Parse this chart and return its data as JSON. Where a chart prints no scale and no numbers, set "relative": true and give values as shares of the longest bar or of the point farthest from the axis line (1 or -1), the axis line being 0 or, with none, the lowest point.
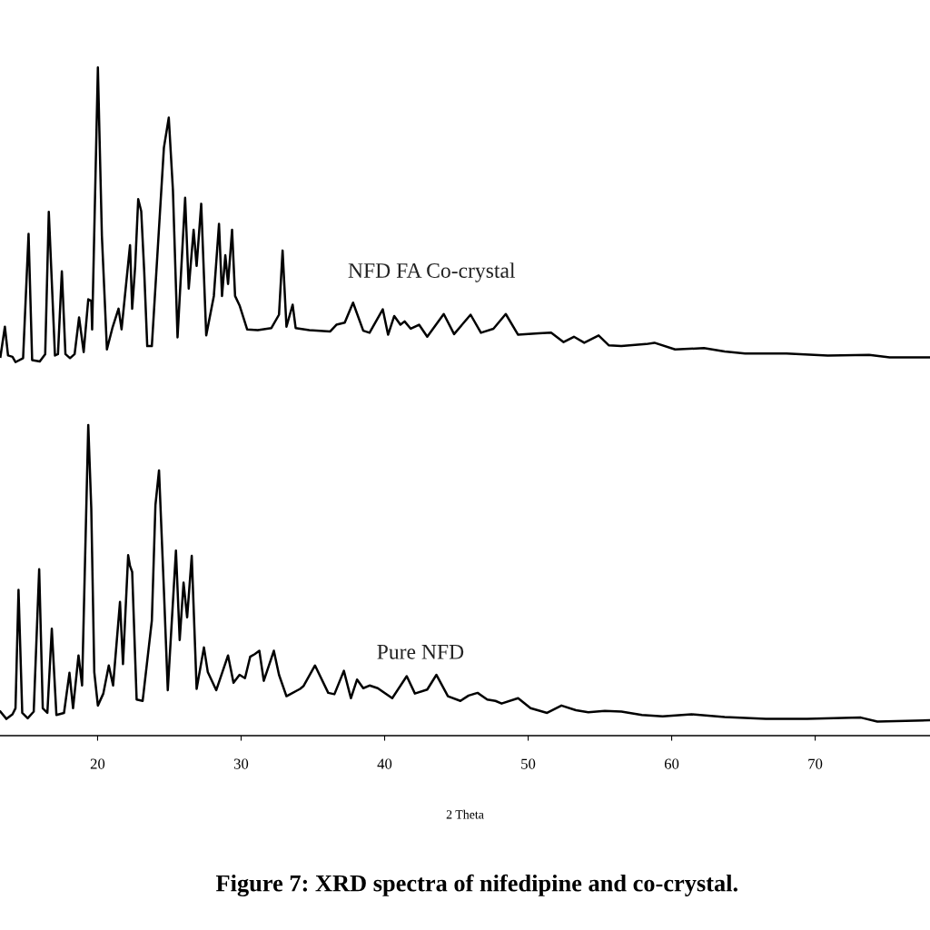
{
  "chart_data": {
    "type": "line",
    "title": "Figure 7: XRD spectra of nifedipine and co-crystal.",
    "xlabel": "2 Theta",
    "relative": true,
    "xlim": [
      13.2,
      78.0
    ],
    "xticks": [
      20,
      30,
      40,
      50,
      60,
      70
    ],
    "series": [
      {
        "name": "NFD FA Co-crystal",
        "color": "#000000",
        "x": [
          13.23,
          13.54,
          13.76,
          14.07,
          14.28,
          14.81,
          15.19,
          15.44,
          15.97,
          16.35,
          16.6,
          17.03,
          17.24,
          17.51,
          17.76,
          18.08,
          18.4,
          18.71,
          19.03,
          19.35,
          19.56,
          19.62,
          20.02,
          20.3,
          20.65,
          21.03,
          21.46,
          21.67,
          22.26,
          22.41,
          22.62,
          22.83,
          23.04,
          23.25,
          23.46,
          23.78,
          24.62,
          24.96,
          25.25,
          25.57,
          26.1,
          26.35,
          26.69,
          26.9,
          27.22,
          27.57,
          28.1,
          28.46,
          28.67,
          28.9,
          29.09,
          29.37,
          29.58,
          29.89,
          30.42,
          31.16,
          32.11,
          32.64,
          32.89,
          33.16,
          33.59,
          33.8,
          34.75,
          36.21,
          36.64,
          37.22,
          37.8,
          38.51,
          38.95,
          39.87,
          40.24,
          40.67,
          41.1,
          41.39,
          41.82,
          42.4,
          42.97,
          44.12,
          44.84,
          45.99,
          46.71,
          47.58,
          48.44,
          49.3,
          50.74,
          51.6,
          52.47,
          53.19,
          53.91,
          54.91,
          55.63,
          56.49,
          58.22,
          58.8,
          60.24,
          62.25,
          63.69,
          65.12,
          68.0,
          70.88,
          73.76,
          75.19,
          78.0
        ],
        "values": [
          0.567,
          0.612,
          0.569,
          0.567,
          0.559,
          0.565,
          0.751,
          0.562,
          0.56,
          0.571,
          0.784,
          0.569,
          0.571,
          0.695,
          0.571,
          0.565,
          0.571,
          0.626,
          0.574,
          0.653,
          0.651,
          0.608,
          1.0,
          0.748,
          0.578,
          0.61,
          0.639,
          0.608,
          0.734,
          0.639,
          0.703,
          0.803,
          0.785,
          0.694,
          0.583,
          0.583,
          0.88,
          0.925,
          0.816,
          0.596,
          0.805,
          0.669,
          0.757,
          0.703,
          0.796,
          0.599,
          0.658,
          0.766,
          0.658,
          0.719,
          0.676,
          0.757,
          0.658,
          0.644,
          0.608,
          0.607,
          0.61,
          0.63,
          0.726,
          0.612,
          0.645,
          0.61,
          0.607,
          0.605,
          0.615,
          0.618,
          0.648,
          0.606,
          0.603,
          0.638,
          0.6,
          0.628,
          0.615,
          0.62,
          0.609,
          0.615,
          0.597,
          0.631,
          0.601,
          0.63,
          0.603,
          0.609,
          0.631,
          0.6,
          0.602,
          0.603,
          0.589,
          0.597,
          0.588,
          0.599,
          0.584,
          0.583,
          0.586,
          0.588,
          0.578,
          0.58,
          0.575,
          0.572,
          0.572,
          0.569,
          0.57,
          0.566,
          0.566
        ]
      },
      {
        "name": "Pure NFD",
        "color": "#000000",
        "x": [
          13.23,
          13.65,
          14.07,
          14.28,
          14.49,
          14.75,
          15.13,
          15.55,
          15.93,
          16.18,
          16.5,
          16.81,
          17.13,
          17.66,
          18.04,
          18.29,
          18.67,
          18.92,
          19.35,
          19.56,
          19.77,
          20.02,
          20.4,
          20.78,
          21.08,
          21.56,
          21.77,
          22.13,
          22.26,
          22.41,
          22.72,
          23.14,
          23.78,
          24.03,
          24.28,
          24.62,
          24.89,
          25.46,
          25.72,
          25.99,
          26.24,
          26.56,
          26.9,
          27.41,
          27.68,
          28.27,
          29.09,
          29.47,
          29.89,
          30.27,
          30.63,
          30.95,
          31.27,
          31.58,
          32.28,
          32.64,
          33.16,
          34.11,
          34.34,
          35.15,
          36.07,
          36.5,
          37.16,
          37.65,
          38.08,
          38.51,
          38.95,
          39.52,
          40.53,
          41.54,
          42.11,
          42.97,
          43.61,
          44.41,
          45.28,
          45.85,
          46.48,
          47.15,
          47.72,
          48.15,
          49.3,
          50.17,
          51.32,
          52.32,
          53.33,
          54.19,
          55.34,
          56.5,
          57.93,
          59.37,
          61.39,
          63.69,
          66.56,
          69.44,
          73.18,
          74.33,
          78.0
        ],
        "values": [
          0.036,
          0.025,
          0.032,
          0.041,
          0.218,
          0.034,
          0.026,
          0.036,
          0.249,
          0.041,
          0.034,
          0.16,
          0.031,
          0.034,
          0.094,
          0.041,
          0.12,
          0.075,
          0.465,
          0.34,
          0.095,
          0.045,
          0.063,
          0.105,
          0.075,
          0.2,
          0.107,
          0.27,
          0.254,
          0.245,
          0.054,
          0.052,
          0.172,
          0.345,
          0.397,
          0.218,
          0.068,
          0.277,
          0.143,
          0.229,
          0.177,
          0.269,
          0.07,
          0.132,
          0.095,
          0.068,
          0.12,
          0.079,
          0.091,
          0.086,
          0.118,
          0.122,
          0.127,
          0.082,
          0.127,
          0.091,
          0.059,
          0.07,
          0.074,
          0.105,
          0.064,
          0.062,
          0.097,
          0.056,
          0.084,
          0.071,
          0.075,
          0.071,
          0.056,
          0.089,
          0.063,
          0.069,
          0.091,
          0.059,
          0.052,
          0.06,
          0.064,
          0.054,
          0.052,
          0.048,
          0.056,
          0.041,
          0.034,
          0.045,
          0.038,
          0.035,
          0.037,
          0.036,
          0.031,
          0.029,
          0.032,
          0.028,
          0.025,
          0.025,
          0.027,
          0.021,
          0.023
        ]
      }
    ]
  }
}
